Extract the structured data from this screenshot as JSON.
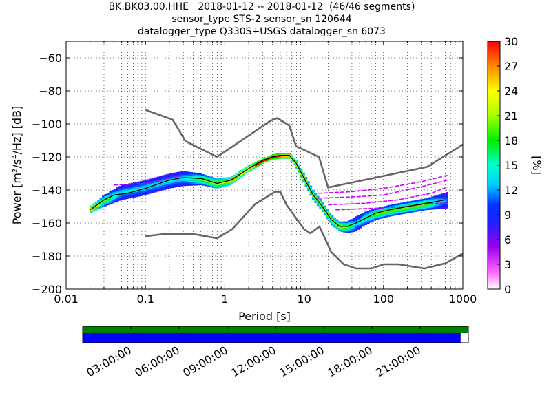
{
  "title": {
    "line1": "BK.BK03.00.HHE   2018-01-12 -- 2018-01-12  (46/46 segments)",
    "line2": "sensor_type STS-2 sensor_sn 120644",
    "line3": "datalogger_type Q330S+USGS datalogger_sn 6073"
  },
  "chart_data": {
    "type": "heatmap",
    "xlabel": "Period [s]",
    "ylabel": "Power [m²/s⁴/Hz] [dB]",
    "xscale": "log",
    "xlim": [
      0.01,
      1000
    ],
    "ylim": [
      -200,
      -50
    ],
    "x_ticks": [
      0.01,
      0.1,
      1,
      10,
      100,
      1000
    ],
    "x_tick_labels": [
      "0.01",
      "0.1",
      "1",
      "10",
      "100",
      "1000"
    ],
    "y_ticks": [
      -200,
      -180,
      -160,
      -140,
      -120,
      -100,
      -80,
      -60
    ],
    "y_tick_labels": [
      "−200",
      "−180",
      "−160",
      "−140",
      "−120",
      "−100",
      "−80",
      "−60"
    ],
    "grid": true,
    "colorbar": {
      "label": "[%]",
      "range": [
        0,
        30
      ],
      "ticks": [
        0,
        3,
        6,
        9,
        12,
        15,
        18,
        21,
        24,
        27,
        30
      ],
      "tick_labels": [
        "0",
        "3",
        "6",
        "9",
        "12",
        "15",
        "18",
        "21",
        "24",
        "27",
        "30"
      ]
    },
    "noise_models": [
      {
        "name": "NHNM",
        "color": "#666666",
        "points": [
          [
            0.1,
            -91.5
          ],
          [
            0.22,
            -97.4
          ],
          [
            0.32,
            -110.5
          ],
          [
            0.8,
            -120
          ],
          [
            3.8,
            -98
          ],
          [
            4.6,
            -96.5
          ],
          [
            6.5,
            -101
          ],
          [
            7.9,
            -113.5
          ],
          [
            15.4,
            -120
          ],
          [
            20,
            -138.5
          ],
          [
            354.8,
            -126
          ],
          [
            1000,
            -112.5
          ]
        ]
      },
      {
        "name": "NLNM",
        "color": "#666666",
        "points": [
          [
            0.1,
            -168
          ],
          [
            0.17,
            -166.7
          ],
          [
            0.4,
            -166.7
          ],
          [
            0.8,
            -169.2
          ],
          [
            1.24,
            -163.7
          ],
          [
            2.4,
            -148.6
          ],
          [
            4.3,
            -141.1
          ],
          [
            5,
            -141.1
          ],
          [
            6,
            -149
          ],
          [
            10,
            -163.8
          ],
          [
            12,
            -166.2
          ],
          [
            15.6,
            -162.1
          ],
          [
            21.9,
            -177.5
          ],
          [
            31.6,
            -185
          ],
          [
            45,
            -187.5
          ],
          [
            70,
            -187.5
          ],
          [
            101,
            -185
          ],
          [
            154,
            -185
          ],
          [
            328,
            -187.5
          ],
          [
            600,
            -184.4
          ],
          [
            1000,
            -178.5
          ]
        ]
      }
    ],
    "mean_curve": {
      "color": "#000000",
      "points": [
        [
          0.02,
          -152
        ],
        [
          0.03,
          -146
        ],
        [
          0.04,
          -143
        ],
        [
          0.06,
          -142
        ],
        [
          0.1,
          -139
        ],
        [
          0.2,
          -134
        ],
        [
          0.3,
          -132.5
        ],
        [
          0.5,
          -133
        ],
        [
          0.8,
          -136
        ],
        [
          1.2,
          -134
        ],
        [
          2,
          -127
        ],
        [
          3,
          -122
        ],
        [
          4,
          -120
        ],
        [
          5,
          -119
        ],
        [
          6.5,
          -119
        ],
        [
          8,
          -124
        ],
        [
          10,
          -133
        ],
        [
          13,
          -143
        ],
        [
          17,
          -150
        ],
        [
          22,
          -158
        ],
        [
          28,
          -162
        ],
        [
          35,
          -162
        ],
        [
          45,
          -160
        ],
        [
          60,
          -157
        ],
        [
          80,
          -154
        ],
        [
          120,
          -152
        ],
        [
          200,
          -150
        ],
        [
          350,
          -148
        ],
        [
          600,
          -146
        ]
      ]
    },
    "pdf_band": {
      "upper": [
        [
          0.02,
          -150
        ],
        [
          0.03,
          -143
        ],
        [
          0.05,
          -137
        ],
        [
          0.1,
          -134
        ],
        [
          0.2,
          -130
        ],
        [
          0.3,
          -128.5
        ],
        [
          0.5,
          -130
        ],
        [
          0.8,
          -133
        ],
        [
          1.2,
          -132
        ],
        [
          2,
          -125
        ],
        [
          3,
          -121
        ],
        [
          4,
          -118.5
        ],
        [
          5,
          -117.5
        ],
        [
          6.5,
          -117.5
        ],
        [
          8,
          -122
        ],
        [
          10,
          -130
        ],
        [
          13,
          -140
        ],
        [
          17,
          -147
        ],
        [
          22,
          -155
        ],
        [
          28,
          -159
        ],
        [
          35,
          -159
        ],
        [
          45,
          -156
        ],
        [
          60,
          -153
        ],
        [
          80,
          -151
        ],
        [
          120,
          -149
        ],
        [
          200,
          -147
        ],
        [
          350,
          -145
        ],
        [
          650,
          -141
        ]
      ],
      "lower": [
        [
          0.02,
          -154
        ],
        [
          0.03,
          -150
        ],
        [
          0.05,
          -146
        ],
        [
          0.1,
          -143
        ],
        [
          0.2,
          -139
        ],
        [
          0.3,
          -137.5
        ],
        [
          0.5,
          -137
        ],
        [
          0.8,
          -139
        ],
        [
          1.2,
          -137
        ],
        [
          2,
          -129
        ],
        [
          3,
          -124
        ],
        [
          4,
          -121.5
        ],
        [
          5,
          -121
        ],
        [
          6.5,
          -121
        ],
        [
          8,
          -127
        ],
        [
          10,
          -136
        ],
        [
          13,
          -146
        ],
        [
          17,
          -153
        ],
        [
          22,
          -161
        ],
        [
          28,
          -165
        ],
        [
          35,
          -166
        ],
        [
          45,
          -165
        ],
        [
          60,
          -161
        ],
        [
          80,
          -158
        ],
        [
          120,
          -156
        ],
        [
          200,
          -154
        ],
        [
          350,
          -152
        ],
        [
          650,
          -151
        ]
      ]
    },
    "outlier_lines": [
      [
        [
          15,
          -142
        ],
        [
          40,
          -141
        ],
        [
          100,
          -139
        ],
        [
          300,
          -135
        ],
        [
          650,
          -131
        ]
      ],
      [
        [
          15,
          -145
        ],
        [
          50,
          -144
        ],
        [
          100,
          -143
        ],
        [
          300,
          -138
        ],
        [
          650,
          -134
        ]
      ],
      [
        [
          20,
          -149
        ],
        [
          60,
          -148
        ],
        [
          150,
          -146
        ],
        [
          400,
          -142
        ],
        [
          650,
          -138
        ]
      ],
      [
        [
          25,
          -152
        ],
        [
          80,
          -151
        ],
        [
          200,
          -150
        ],
        [
          400,
          -148
        ],
        [
          650,
          -148
        ]
      ],
      [
        [
          0.04,
          -137
        ],
        [
          0.1,
          -136
        ],
        [
          0.2,
          -133
        ],
        [
          0.3,
          -131
        ]
      ]
    ]
  },
  "timeline": {
    "tick_labels": [
      "03:00:00",
      "06:00:00",
      "09:00:00",
      "12:00:00",
      "15:00:00",
      "18:00:00",
      "21:00:00"
    ],
    "coverage_color": "#0000ff",
    "data_color": "#008000",
    "coverage_fraction": 0.98
  }
}
